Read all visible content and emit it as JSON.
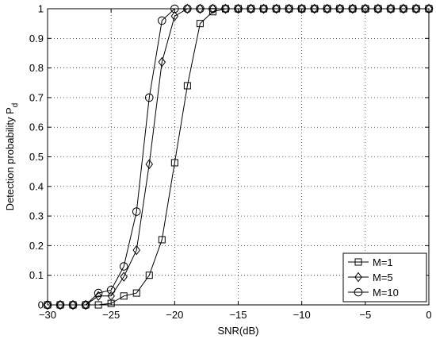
{
  "chart_data": {
    "type": "line",
    "title": "",
    "xlabel": "SNR(dB)",
    "ylabel": "Detection probability P",
    "ylabel_subscript": "d",
    "xlim": [
      -30,
      0
    ],
    "ylim": [
      0,
      1
    ],
    "grid": "dotted",
    "legend_position": "bottom-right",
    "x_ticks": [
      -30,
      -25,
      -20,
      -15,
      -10,
      -5,
      0
    ],
    "y_ticks": [
      0,
      0.1,
      0.2,
      0.3,
      0.4,
      0.5,
      0.6,
      0.7,
      0.8,
      0.9,
      1
    ],
    "x_tick_labels": [
      "−30",
      "−25",
      "−20",
      "−15",
      "−10",
      "−5",
      "0"
    ],
    "y_tick_labels": [
      "0",
      "0.1",
      "0.2",
      "0.3",
      "0.4",
      "0.5",
      "0.6",
      "0.7",
      "0.8",
      "0.9",
      "1"
    ],
    "x": [
      -30,
      -29,
      -28,
      -27,
      -26,
      -25,
      -24,
      -23,
      -22,
      -21,
      -20,
      -19,
      -18,
      -17,
      -16,
      -15,
      -14,
      -13,
      -12,
      -11,
      -10,
      -9,
      -8,
      -7,
      -6,
      -5,
      -4,
      -3,
      -2,
      -1,
      0
    ],
    "series": [
      {
        "name": "M=1",
        "marker": "square",
        "values": [
          0,
          0,
          0,
          0,
          0,
          0.005,
          0.03,
          0.04,
          0.1,
          0.22,
          0.48,
          0.74,
          0.95,
          0.99,
          1,
          1,
          1,
          1,
          1,
          1,
          1,
          1,
          1,
          1,
          1,
          1,
          1,
          1,
          1,
          1,
          1
        ]
      },
      {
        "name": "M=5",
        "marker": "diamond",
        "values": [
          0,
          0,
          0,
          0,
          0.03,
          0.03,
          0.095,
          0.185,
          0.475,
          0.82,
          0.975,
          1,
          1,
          1,
          1,
          1,
          1,
          1,
          1,
          1,
          1,
          1,
          1,
          1,
          1,
          1,
          1,
          1,
          1,
          1,
          1
        ]
      },
      {
        "name": "M=10",
        "marker": "circle",
        "values": [
          0,
          0,
          0,
          0,
          0.04,
          0.05,
          0.13,
          0.315,
          0.7,
          0.96,
          1,
          1,
          1,
          1,
          1,
          1,
          1,
          1,
          1,
          1,
          1,
          1,
          1,
          1,
          1,
          1,
          1,
          1,
          1,
          1,
          1
        ]
      }
    ]
  }
}
